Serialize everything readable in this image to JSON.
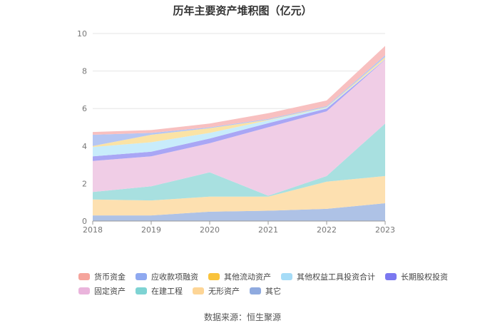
{
  "chart_data": {
    "type": "area",
    "stacked": true,
    "title": "历年主要资产堆积图（亿元）",
    "categories": [
      "2018",
      "2019",
      "2020",
      "2021",
      "2022",
      "2023"
    ],
    "ylim": [
      0,
      10
    ],
    "yticks": [
      "0",
      "2",
      "4",
      "6",
      "8",
      "10"
    ],
    "grid": true,
    "legend_position": "bottom",
    "series": [
      {
        "name": "其它",
        "color": "#aec2e6",
        "values": [
          0.3,
          0.3,
          0.5,
          0.55,
          0.65,
          0.95
        ]
      },
      {
        "name": "无形资产",
        "color": "#fde0b0",
        "values": [
          0.85,
          0.8,
          0.8,
          0.75,
          1.45,
          1.45
        ]
      },
      {
        "name": "在建工程",
        "color": "#a8e0e0",
        "values": [
          0.4,
          0.75,
          1.3,
          0.05,
          0.3,
          2.8
        ]
      },
      {
        "name": "固定资产",
        "color": "#f0cde6",
        "values": [
          1.65,
          1.6,
          1.55,
          3.65,
          3.45,
          3.4
        ]
      },
      {
        "name": "长期股权投资",
        "color": "#a9a6f5",
        "values": [
          0.25,
          0.25,
          0.25,
          0.22,
          0.15,
          0.02
        ]
      },
      {
        "name": "其他权益工具投资合计",
        "color": "#c8ecfb",
        "values": [
          0.5,
          0.5,
          0.3,
          0.15,
          0.05,
          0.02
        ]
      },
      {
        "name": "其他流动资产",
        "color": "#fbe3a5",
        "values": [
          0.05,
          0.4,
          0.25,
          0.03,
          0.03,
          0.1
        ]
      },
      {
        "name": "应收款项融资",
        "color": "#b5c6f3",
        "values": [
          0.6,
          0.1,
          0.05,
          0.05,
          0.05,
          0.1
        ]
      },
      {
        "name": "货币资金",
        "color": "#f8c0c0",
        "values": [
          0.15,
          0.15,
          0.2,
          0.3,
          0.3,
          0.5
        ]
      }
    ],
    "legend": [
      {
        "name": "货币资金",
        "color": "#f5a49c"
      },
      {
        "name": "应收款项融资",
        "color": "#8fa9f0"
      },
      {
        "name": "其他流动资产",
        "color": "#f9c33c"
      },
      {
        "name": "其他权益工具投资合计",
        "color": "#a6dcf7"
      },
      {
        "name": "长期股权投资",
        "color": "#7b78f0"
      },
      {
        "name": "固定资产",
        "color": "#eab4dc"
      },
      {
        "name": "在建工程",
        "color": "#7ed3d3"
      },
      {
        "name": "无形资产",
        "color": "#fdd596"
      },
      {
        "name": "其它",
        "color": "#8faadf"
      }
    ]
  },
  "source": "数据来源：恒生聚源"
}
